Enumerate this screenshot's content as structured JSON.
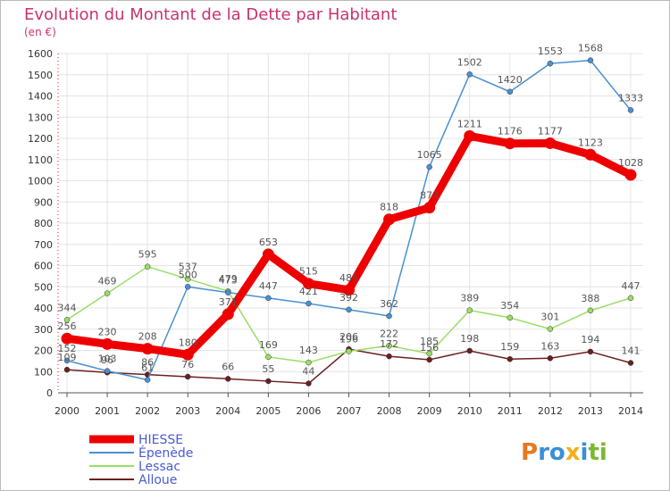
{
  "chart_data": {
    "type": "line",
    "title": "Evolution du Montant de la Dette par Habitant",
    "subtitle": "(en €)",
    "x": [
      "2000",
      "2001",
      "2002",
      "2003",
      "2004",
      "2005",
      "2006",
      "2007",
      "2008",
      "2009",
      "2010",
      "2011",
      "2012",
      "2013",
      "2014"
    ],
    "ylim": [
      0,
      1600
    ],
    "yticks": [
      0,
      100,
      200,
      300,
      400,
      500,
      600,
      700,
      800,
      900,
      1000,
      1100,
      1200,
      1300,
      1400,
      1500,
      1600
    ],
    "grid": true,
    "legend_placement": "bottom-left",
    "series": [
      {
        "name": "Alloue",
        "color": "#6b1f1f",
        "values": [
          109,
          96,
          86,
          76,
          66,
          55,
          44,
          206,
          172,
          156,
          198,
          159,
          163,
          194,
          141
        ],
        "labels": [
          "109",
          "96",
          "86",
          "76",
          "66",
          "55",
          "44",
          "206",
          "172",
          "156",
          "198",
          "159",
          "163",
          "194",
          "141"
        ]
      },
      {
        "name": "Lessac",
        "color": "#99dd66",
        "values": [
          344,
          469,
          595,
          537,
          479,
          169,
          143,
          196,
          222,
          185,
          389,
          354,
          301,
          388,
          447
        ],
        "labels": [
          "344",
          "469",
          "595",
          "537",
          "479",
          "169",
          "143",
          "196",
          "222",
          "185",
          "389",
          "354",
          "301",
          "388",
          "447"
        ]
      },
      {
        "name": "Épenède",
        "color": "#4a90d0",
        "values": [
          152,
          103,
          61,
          500,
          473,
          447,
          421,
          392,
          362,
          1065,
          1502,
          1420,
          1553,
          1568,
          1333
        ],
        "labels": [
          "152",
          "103",
          "61",
          "500",
          "473",
          "447",
          "421",
          "392",
          "362",
          "1065",
          "1502",
          "1420",
          "1553",
          "1568",
          "1333"
        ]
      },
      {
        "name": "HIESSE",
        "color": "#ee0000",
        "values": [
          256,
          230,
          208,
          180,
          371,
          653,
          515,
          485,
          818,
          873,
          1211,
          1176,
          1177,
          1123,
          1028
        ],
        "labels": [
          "256",
          "230",
          "208",
          "180",
          "371",
          "653",
          "515",
          "485",
          "818",
          "873",
          "1211",
          "1176",
          "1177",
          "1123",
          "1028"
        ]
      }
    ],
    "legend_order": [
      "HIESSE",
      "Épenède",
      "Lessac",
      "Alloue"
    ]
  },
  "logo": {
    "text": "Proxiti"
  }
}
